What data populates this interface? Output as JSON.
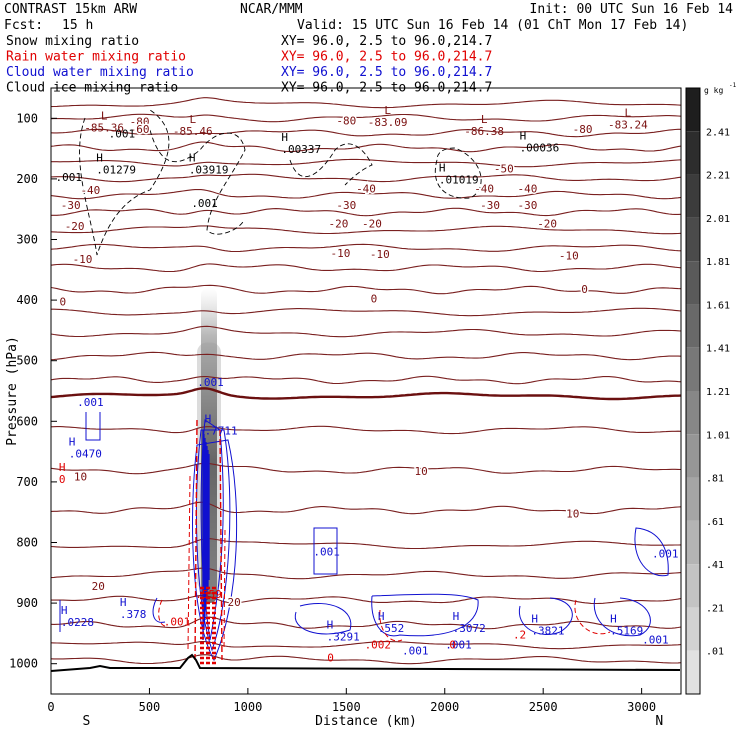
{
  "header": {
    "model": "CONTRAST 15km ARW",
    "fcst_label": "Fcst:",
    "fcst_value": "15 h",
    "org": "NCAR/MMM",
    "init": "Init: 00 UTC Sun 16 Feb 14",
    "valid": "Valid: 15 UTC Sun 16 Feb 14 (01 ChT Mon 17 Feb 14)",
    "fields": [
      {
        "name": "Snow mixing ratio",
        "xy": "XY=  96.0,  2.5 to  96.0,214.7",
        "color": "#000000"
      },
      {
        "name": "Rain water mixing ratio",
        "xy": "XY=  96.0,  2.5 to  96.0,214.7",
        "color": "#e00000"
      },
      {
        "name": "Cloud water mixing ratio",
        "xy": "XY=  96.0,  2.5 to  96.0,214.7",
        "color": "#1010d0"
      },
      {
        "name": "Cloud ice mixing ratio",
        "xy": "XY=  96.0,  2.5 to  96.0,214.7",
        "color": "#000000"
      }
    ]
  },
  "chart_data": {
    "type": "heatmap",
    "subtype": "vertical cross-section",
    "xlabel": "Distance (km)",
    "ylabel": "Pressure (hPa)",
    "xlim": [
      0,
      3200
    ],
    "ylim": [
      1050,
      50
    ],
    "x_ticks": [
      0,
      500,
      1000,
      1500,
      2000,
      2500,
      3000
    ],
    "y_ticks": [
      100,
      200,
      300,
      400,
      500,
      600,
      700,
      800,
      900,
      1000
    ],
    "x_end_labels": {
      "left": "S",
      "right": "N"
    },
    "colorbar": {
      "unit": "g kg",
      "unit_exponent": "-1",
      "levels": [
        "2.41",
        "2.21",
        "2.01",
        "1.81",
        "1.61",
        "1.41",
        "1.21",
        "1.01",
        ".81",
        ".61",
        ".41",
        ".21",
        ".01"
      ]
    },
    "temperature_labels": {
      "-80": [
        [
          450,
          105
        ],
        [
          1500,
          104
        ],
        [
          2700,
          118
        ]
      ],
      "-60": [
        [
          450,
          118
        ]
      ],
      "-50": [
        [
          2300,
          183
        ]
      ],
      "-40": [
        [
          200,
          218
        ],
        [
          1600,
          216
        ],
        [
          2200,
          216
        ],
        [
          2420,
          216
        ]
      ],
      "-30": [
        [
          100,
          243
        ],
        [
          1500,
          243
        ],
        [
          2230,
          243
        ],
        [
          2420,
          243
        ]
      ],
      "-20": [
        [
          120,
          278
        ],
        [
          1460,
          274
        ],
        [
          1630,
          274
        ],
        [
          2520,
          274
        ]
      ],
      "-10": [
        [
          160,
          332
        ],
        [
          1470,
          322
        ],
        [
          1670,
          324
        ],
        [
          2630,
          326
        ]
      ],
      "0": [
        [
          60,
          402
        ],
        [
          1640,
          397
        ],
        [
          2710,
          382
        ]
      ],
      "10": [
        [
          150,
          691
        ],
        [
          1880,
          682
        ],
        [
          2650,
          752
        ]
      ],
      "20": [
        [
          240,
          872
        ],
        [
          930,
          898
        ]
      ]
    },
    "lows": [
      {
        "label": "L",
        "value": "-85.36",
        "x": 270,
        "p": 112
      },
      {
        "label": "L",
        "value": "-85.46",
        "x": 720,
        "p": 118
      },
      {
        "label": "L",
        "value": "-83.09",
        "x": 1710,
        "p": 103
      },
      {
        "label": "L",
        "value": "-86.38",
        "x": 2200,
        "p": 118
      },
      {
        "label": "L",
        "value": "-83.24",
        "x": 2930,
        "p": 107
      }
    ],
    "highs": [
      {
        "label": "H",
        "value": ".01279",
        "x": 230,
        "p": 181,
        "color": "#000000"
      },
      {
        "label": "H",
        "value": ".03919",
        "x": 700,
        "p": 181,
        "color": "#000000"
      },
      {
        "label": "H",
        "value": ".00337",
        "x": 1170,
        "p": 147,
        "color": "#000000"
      },
      {
        "label": "H",
        "value": ".01019",
        "x": 1970,
        "p": 198,
        "color": "#000000"
      },
      {
        "label": "H",
        "value": ".00036",
        "x": 2380,
        "p": 145,
        "color": "#000000"
      },
      {
        "label": "H",
        "value": ".0470",
        "x": 90,
        "p": 650,
        "color": "#1010d0"
      },
      {
        "label": "H",
        "value": ".7711",
        "x": 780,
        "p": 612,
        "color": "#1010d0"
      },
      {
        "label": "H",
        "value": ".0228",
        "x": 50,
        "p": 928,
        "color": "#1010d0"
      },
      {
        "label": "H",
        "value": ".378",
        "x": 350,
        "p": 915,
        "color": "#1010d0"
      },
      {
        "label": "H",
        "value": ".3291",
        "x": 1400,
        "p": 952,
        "color": "#1010d0"
      },
      {
        "label": "H",
        "value": ".552",
        "x": 1660,
        "p": 938,
        "color": "#1010d0"
      },
      {
        "label": "H",
        "value": ".3072",
        "x": 2040,
        "p": 938,
        "color": "#1010d0"
      },
      {
        "label": "H",
        "value": ".3821",
        "x": 2440,
        "p": 942,
        "color": "#1010d0"
      },
      {
        "label": "H",
        "value": ".5169",
        "x": 2840,
        "p": 942,
        "color": "#1010d0"
      },
      {
        "label": "H",
        "value": "0",
        "x": 40,
        "p": 692,
        "color": "#e00000"
      }
    ],
    "contour_labels": [
      {
        "text": ".001",
        "x": 360,
        "p": 125,
        "color": "#000000"
      },
      {
        "text": ".001",
        "x": 90,
        "p": 197,
        "color": "#000000"
      },
      {
        "text": ".001",
        "x": 780,
        "p": 240,
        "color": "#000000"
      },
      {
        "text": ".001",
        "x": 200,
        "p": 568,
        "color": "#1010d0"
      },
      {
        "text": ".001",
        "x": 810,
        "p": 535,
        "color": "#1010d0"
      },
      {
        "text": ".001",
        "x": 1400,
        "p": 815,
        "color": "#1010d0"
      },
      {
        "text": ".001",
        "x": 3120,
        "p": 818,
        "color": "#1010d0"
      },
      {
        "text": ".001",
        "x": 1850,
        "p": 978,
        "color": "#1010d0"
      },
      {
        "text": ".001",
        "x": 2070,
        "p": 968,
        "color": "#1010d0"
      },
      {
        "text": ".001",
        "x": 3070,
        "p": 960,
        "color": "#1010d0"
      },
      {
        "text": ".001",
        "x": 640,
        "p": 930,
        "color": "#e00000"
      },
      {
        "text": ".002",
        "x": 1660,
        "p": 968,
        "color": "#e00000"
      },
      {
        "text": ".559",
        "x": 800,
        "p": 885,
        "color": "#e00000"
      },
      {
        "text": "0",
        "x": 1420,
        "p": 990,
        "color": "#e00000"
      },
      {
        "text": "0",
        "x": 2040,
        "p": 968,
        "color": "#e00000"
      },
      {
        "text": ".2",
        "x": 2380,
        "p": 952,
        "color": "#e00000"
      }
    ]
  }
}
